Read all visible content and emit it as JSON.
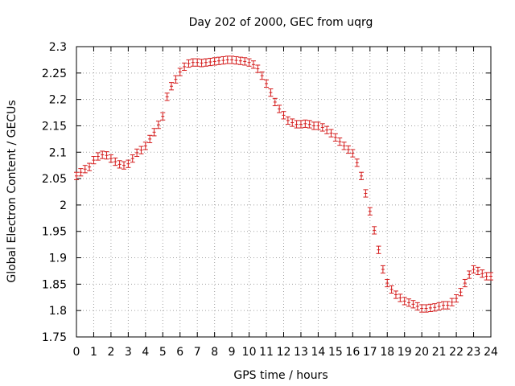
{
  "chart_data": {
    "type": "line",
    "title": "Day 202 of 2000, GEC from uqrg",
    "xlabel": "GPS time / hours",
    "ylabel": "Global Electron Content / GECUs",
    "xlim": [
      0,
      24
    ],
    "ylim": [
      1.75,
      2.3
    ],
    "x_ticks": [
      0,
      1,
      2,
      3,
      4,
      5,
      6,
      7,
      8,
      9,
      10,
      11,
      12,
      13,
      14,
      15,
      16,
      17,
      18,
      19,
      20,
      21,
      22,
      23,
      24
    ],
    "x_tick_labels": [
      "0",
      "1",
      "2",
      "3",
      "4",
      "5",
      "6",
      "7",
      "8",
      "9",
      "10",
      "11",
      "12",
      "13",
      "14",
      "15",
      "16",
      "17",
      "18",
      "19",
      "20",
      "21",
      "22",
      "23",
      "24"
    ],
    "y_ticks": [
      1.75,
      1.8,
      1.85,
      1.9,
      1.95,
      2.0,
      2.05,
      2.1,
      2.15,
      2.2,
      2.25,
      2.3
    ],
    "y_tick_labels": [
      "1.75",
      "1.8",
      "1.85",
      "1.9",
      "1.95",
      "2",
      "2.05",
      "2.1",
      "2.15",
      "2.2",
      "2.25",
      "2.3"
    ],
    "grid": true,
    "series": [
      {
        "name": "GEC",
        "color": "#d41c1c",
        "error": 0.007,
        "x": [
          0,
          0.25,
          0.5,
          0.75,
          1,
          1.25,
          1.5,
          1.75,
          2,
          2.25,
          2.5,
          2.75,
          3,
          3.25,
          3.5,
          3.75,
          4,
          4.25,
          4.5,
          4.75,
          5,
          5.25,
          5.5,
          5.75,
          6,
          6.25,
          6.5,
          6.75,
          7,
          7.25,
          7.5,
          7.75,
          8,
          8.25,
          8.5,
          8.75,
          9,
          9.25,
          9.5,
          9.75,
          10,
          10.25,
          10.5,
          10.75,
          11,
          11.25,
          11.5,
          11.75,
          12,
          12.25,
          12.5,
          12.75,
          13,
          13.25,
          13.5,
          13.75,
          14,
          14.25,
          14.5,
          14.75,
          15,
          15.25,
          15.5,
          15.75,
          16,
          16.25,
          16.5,
          16.75,
          17,
          17.25,
          17.5,
          17.75,
          18,
          18.25,
          18.5,
          18.75,
          19,
          19.25,
          19.5,
          19.75,
          20,
          20.25,
          20.5,
          20.75,
          21,
          21.25,
          21.5,
          21.75,
          22,
          22.25,
          22.5,
          22.75,
          23,
          23.25,
          23.5,
          23.75,
          24
        ],
        "y": [
          2.055,
          2.062,
          2.068,
          2.072,
          2.085,
          2.092,
          2.095,
          2.094,
          2.088,
          2.082,
          2.077,
          2.075,
          2.078,
          2.088,
          2.099,
          2.104,
          2.112,
          2.125,
          2.138,
          2.152,
          2.168,
          2.205,
          2.225,
          2.238,
          2.252,
          2.262,
          2.268,
          2.27,
          2.27,
          2.269,
          2.27,
          2.271,
          2.272,
          2.273,
          2.274,
          2.275,
          2.275,
          2.274,
          2.273,
          2.272,
          2.27,
          2.266,
          2.258,
          2.245,
          2.23,
          2.213,
          2.195,
          2.182,
          2.17,
          2.16,
          2.156,
          2.153,
          2.153,
          2.154,
          2.153,
          2.15,
          2.15,
          2.147,
          2.142,
          2.136,
          2.128,
          2.12,
          2.112,
          2.105,
          2.098,
          2.08,
          2.055,
          2.022,
          1.988,
          1.952,
          1.915,
          1.878,
          1.852,
          1.84,
          1.83,
          1.824,
          1.818,
          1.815,
          1.812,
          1.808,
          1.804,
          1.804,
          1.805,
          1.806,
          1.808,
          1.81,
          1.81,
          1.816,
          1.823,
          1.835,
          1.852,
          1.868,
          1.878,
          1.875,
          1.87,
          1.865,
          1.865
        ]
      }
    ]
  }
}
